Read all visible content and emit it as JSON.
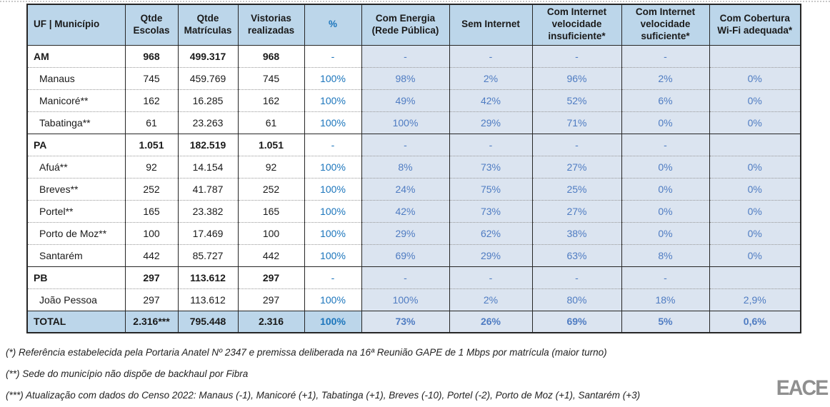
{
  "table": {
    "columns": [
      "UF | Município",
      "Qtde Escolas",
      "Qtde Matrículas",
      "Vistorias realizadas",
      "%",
      "Com Energia (Rede Pública)",
      "Sem Internet",
      "Com Internet velocidade insuficiente*",
      "Com Internet velocidade suficiente*",
      "Com Cobertura Wi-Fi adequada*"
    ],
    "column_slugs": [
      "uf-municipio",
      "qtde-escolas",
      "qtde-matriculas",
      "vistorias-realizadas",
      "percent",
      "com-energia-rede-publica",
      "sem-internet",
      "internet-velocidade-insuficiente",
      "internet-velocidade-suficiente",
      "cobertura-wifi-adequada"
    ],
    "rows": [
      {
        "type": "state",
        "label": "AM",
        "cells": [
          "968",
          "499.317",
          "968",
          "-",
          "-",
          "-",
          "-",
          "-",
          ""
        ]
      },
      {
        "type": "muni",
        "label": "Manaus",
        "cells": [
          "745",
          "459.769",
          "745",
          "100%",
          "98%",
          "2%",
          "96%",
          "2%",
          "0%"
        ]
      },
      {
        "type": "muni",
        "label": "Manicoré**",
        "cells": [
          "162",
          "16.285",
          "162",
          "100%",
          "49%",
          "42%",
          "52%",
          "6%",
          "0%"
        ]
      },
      {
        "type": "muni",
        "label": "Tabatinga**",
        "cells": [
          "61",
          "23.263",
          "61",
          "100%",
          "100%",
          "29%",
          "71%",
          "0%",
          "0%"
        ]
      },
      {
        "type": "state",
        "label": "PA",
        "cells": [
          "1.051",
          "182.519",
          "1.051",
          "-",
          "-",
          "-",
          "-",
          "-",
          ""
        ]
      },
      {
        "type": "muni",
        "label": "Afuá**",
        "cells": [
          "92",
          "14.154",
          "92",
          "100%",
          "8%",
          "73%",
          "27%",
          "0%",
          "0%"
        ]
      },
      {
        "type": "muni",
        "label": "Breves**",
        "cells": [
          "252",
          "41.787",
          "252",
          "100%",
          "24%",
          "75%",
          "25%",
          "0%",
          "0%"
        ]
      },
      {
        "type": "muni",
        "label": "Portel**",
        "cells": [
          "165",
          "23.382",
          "165",
          "100%",
          "42%",
          "73%",
          "27%",
          "0%",
          "0%"
        ]
      },
      {
        "type": "muni",
        "label": "Porto de Moz**",
        "cells": [
          "100",
          "17.469",
          "100",
          "100%",
          "29%",
          "62%",
          "38%",
          "0%",
          "0%"
        ]
      },
      {
        "type": "muni",
        "label": "Santarém",
        "cells": [
          "442",
          "85.727",
          "442",
          "100%",
          "69%",
          "29%",
          "63%",
          "8%",
          "0%"
        ]
      },
      {
        "type": "state",
        "label": "PB",
        "cells": [
          "297",
          "113.612",
          "297",
          "-",
          "-",
          "-",
          "-",
          "-",
          ""
        ]
      },
      {
        "type": "muni",
        "label": "João Pessoa",
        "cells": [
          "297",
          "113.612",
          "297",
          "100%",
          "100%",
          "2%",
          "80%",
          "18%",
          "2,9%"
        ]
      },
      {
        "type": "total",
        "label": "TOTAL",
        "cells": [
          "2.316***",
          "795.448",
          "2.316",
          "100%",
          "73%",
          "26%",
          "69%",
          "5%",
          "0,6%"
        ]
      }
    ]
  },
  "footnotes": [
    "(*) Referência estabelecida pela Portaria Anatel Nº 2347 e premissa deliberada na 16ª Reunião GAPE de 1 Mbps por matrícula (maior turno)",
    "(**) Sede do município não dispõe de backhaul por Fibra",
    "(***) Atualização com dados do Censo 2022: Manaus (-1), Manicoré (+1), Tabatinga (+1), Breves (-10), Portel (-2), Porto de Moz (+1), Santarém (+3)"
  ],
  "logo": {
    "text": "EACE"
  },
  "colors": {
    "header_bg": "#BCD6EA",
    "data_cell_bg": "#DBE4F0",
    "accent_blue": "#1B75BC",
    "muted_blue": "#4F7CC2",
    "border": "#262626",
    "logo_gray": "#8F8F8F"
  }
}
